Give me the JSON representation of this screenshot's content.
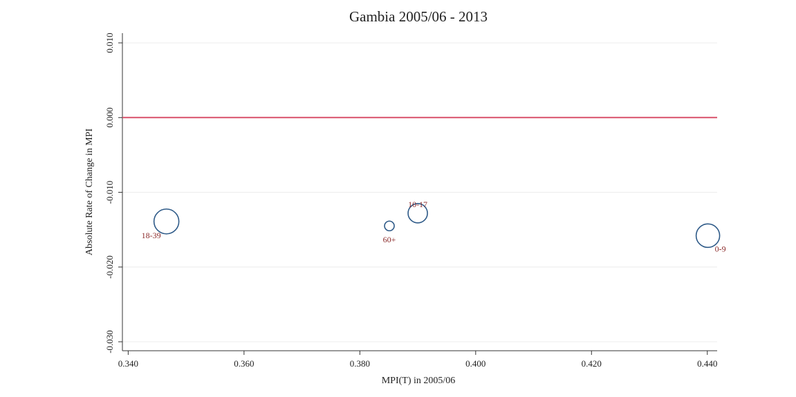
{
  "chart_data": {
    "type": "scatter",
    "title": "Gambia 2005/06 - 2013",
    "x_label": "MPI(T) in 2005/06",
    "y_label": "Absolute Rate of Change in MPI",
    "x": [
      0.3466,
      0.3851,
      0.39,
      0.4401
    ],
    "values": [
      -0.0139,
      -0.0145,
      -0.0128,
      -0.0158
    ],
    "sizes": [
      18,
      7,
      14,
      17
    ],
    "point_labels": [
      "18-39",
      "60+",
      "10-17",
      "0-9"
    ],
    "color": "#2e5a88",
    "label_color": "#8b2a2a",
    "xlim": [
      0.339,
      0.4417
    ],
    "ylim": [
      -0.0312,
      0.0113
    ],
    "xticks": [
      {
        "value": 0.34,
        "label": "0.340"
      },
      {
        "value": 0.36,
        "label": "0.360"
      },
      {
        "value": 0.38,
        "label": "0.380"
      },
      {
        "value": 0.4,
        "label": "0.400"
      },
      {
        "value": 0.42,
        "label": "0.420"
      },
      {
        "value": 0.44,
        "label": "0.440"
      }
    ],
    "yticks": [
      {
        "value": 0.01,
        "label": "0.010"
      },
      {
        "value": 0,
        "label": "0.000"
      },
      {
        "value": -0.01,
        "label": "-0.010"
      },
      {
        "value": -0.02,
        "label": "-0.020"
      },
      {
        "value": -0.03,
        "label": "-0.030"
      }
    ],
    "grid": true,
    "yline": 0,
    "yline_color": "#d9506a"
  }
}
